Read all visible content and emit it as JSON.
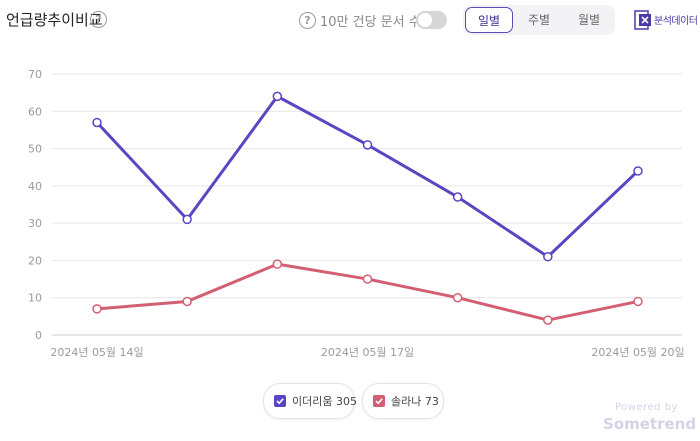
{
  "header": {
    "title": "언급량추이비교",
    "toggle_label": "10만 건당 문서 수",
    "toggle_on": false,
    "period_tabs": [
      {
        "label": "일별",
        "active": true
      },
      {
        "label": "주별",
        "active": false
      },
      {
        "label": "월별",
        "active": false
      }
    ],
    "excel_label": "분석데이터",
    "icons": {
      "help": "question-circle-icon",
      "excel": "excel-download-icon"
    }
  },
  "chart_data": {
    "type": "line",
    "x": [
      "2024-05-14",
      "2024-05-15",
      "2024-05-16",
      "2024-05-17",
      "2024-05-18",
      "2024-05-19",
      "2024-05-20"
    ],
    "x_tick_labels": [
      {
        "x": "2024-05-14",
        "label": "2024년 05월 14일"
      },
      {
        "x": "2024-05-17",
        "label": "2024년 05월 17일"
      },
      {
        "x": "2024-05-20",
        "label": "2024년 05월 20일"
      }
    ],
    "series": [
      {
        "name": "이더리움",
        "total": "305",
        "color": "#5b45c2",
        "values": [
          57,
          31,
          64,
          51,
          37,
          21,
          44
        ]
      },
      {
        "name": "솔라나",
        "total": "73",
        "color": "#d35f73",
        "values": [
          7,
          9,
          19,
          15,
          10,
          4,
          9
        ]
      }
    ],
    "ylim": [
      0,
      70
    ],
    "yticks": [
      0,
      10,
      20,
      30,
      40,
      50,
      60,
      70
    ],
    "grid": true,
    "legend_position": "bottom-center"
  },
  "watermark": {
    "line1": "Powered by",
    "line2": "Sometrend"
  }
}
